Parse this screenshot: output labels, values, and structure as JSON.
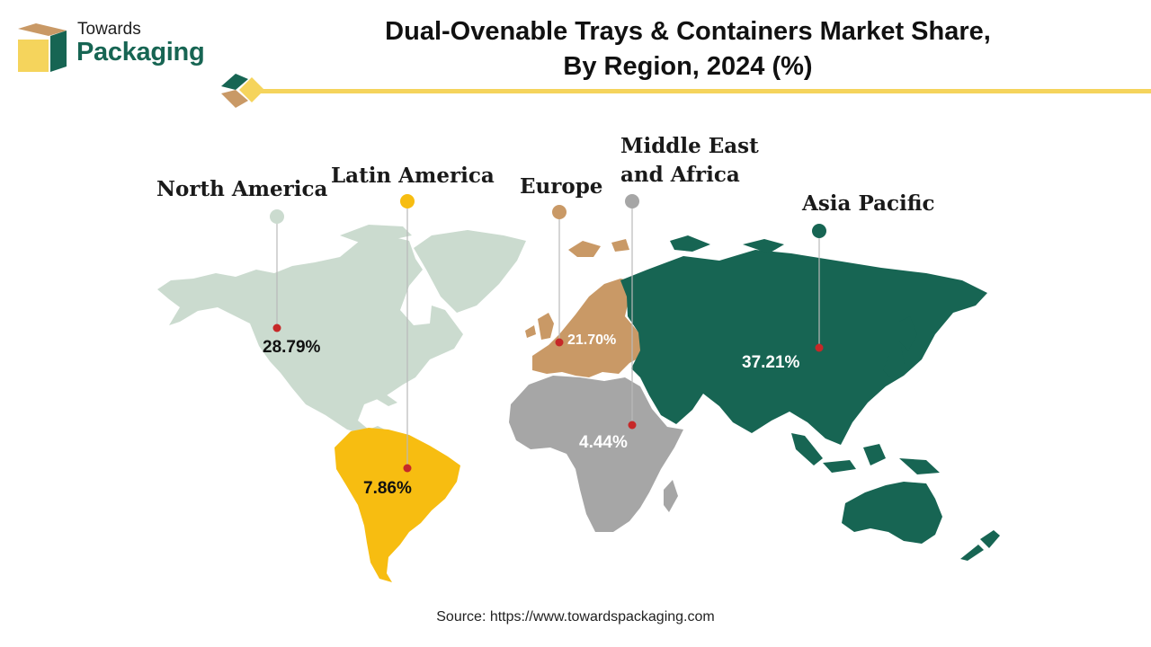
{
  "brand": {
    "line1": "Towards",
    "line2": "Packaging"
  },
  "title": {
    "line1": "Dual-Ovenable Trays & Containers Market Share,",
    "line2": "By Region, 2024 (%)"
  },
  "colors": {
    "north_america": "#cbdbcf",
    "latin_america": "#f7bd11",
    "europe": "#c99966",
    "middle_east_africa": "#a6a6a6",
    "asia_pacific": "#176553",
    "accent_line": "#f5d45c",
    "marker": "#c62828"
  },
  "chart_data": {
    "type": "map",
    "title": "Dual-Ovenable Trays & Containers Market Share, By Region, 2024 (%)",
    "unit": "%",
    "regions": [
      {
        "name": "North America",
        "value": 28.79,
        "value_label": "28.79%"
      },
      {
        "name": "Latin America",
        "value": 7.86,
        "value_label": "7.86%"
      },
      {
        "name": "Europe",
        "value": 21.7,
        "value_label": "21.70%"
      },
      {
        "name": "Middle East and Africa",
        "value": 4.44,
        "value_label": "4.44%"
      },
      {
        "name": "Asia Pacific",
        "value": 37.21,
        "value_label": "37.21%"
      }
    ]
  },
  "labels": {
    "north_america": "North America",
    "latin_america": "Latin America",
    "europe": "Europe",
    "mea_line1": "Middle East",
    "mea_line2": "and Africa",
    "asia_pacific": "Asia Pacific"
  },
  "source": "Source: https://www.towardspackaging.com"
}
